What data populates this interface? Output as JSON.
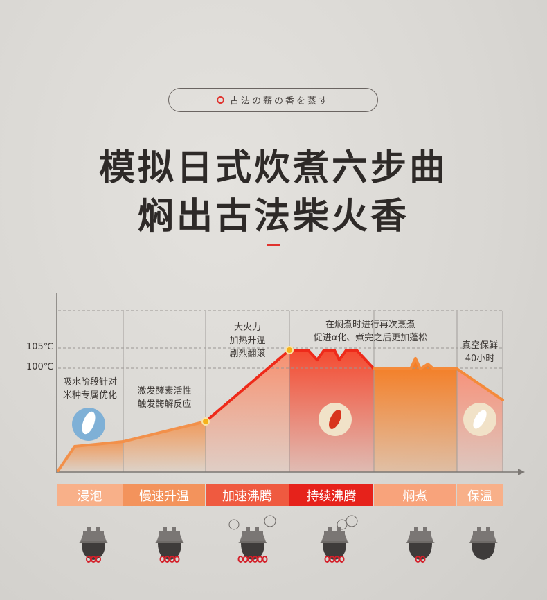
{
  "tagline": "古法の薪の香を蒸す",
  "title_line1": "模拟日式炊煮六步曲",
  "title_line2": "焖出古法柴火香",
  "chart_data": {
    "type": "line",
    "y_ticks": [
      "105℃",
      "100℃"
    ],
    "annotations": [
      {
        "lines": [
          "吸水阶段针对",
          "米种专属优化"
        ]
      },
      {
        "lines": [
          "激发酵素活性",
          "触发酶解反应"
        ]
      },
      {
        "lines": [
          "大火力",
          "加热升温",
          "剧烈翻滚"
        ]
      },
      {
        "lines": [
          "在焖煮时进行再次烹煮",
          "促进α化、煮完之后更加蓬松"
        ]
      },
      {
        "lines": [
          "真空保鲜",
          "40小时"
        ]
      }
    ],
    "categories": [
      "浸泡",
      "慢速升温",
      "加速沸腾",
      "持续沸腾",
      "焖煮",
      "保温"
    ],
    "grid": true
  },
  "stages": [
    {
      "label": "浸泡",
      "color": "#f8b089",
      "flames": 3
    },
    {
      "label": "慢速升温",
      "color": "#f3935c",
      "flames": 4
    },
    {
      "label": "加速沸腾",
      "color": "#ef5a40",
      "flames": 6
    },
    {
      "label": "持续沸腾",
      "color": "#e6221b",
      "flames": 4
    },
    {
      "label": "焖煮",
      "color": "#f8a37b",
      "flames": 2
    },
    {
      "label": "保温",
      "color": "#f8b089",
      "flames": 0
    }
  ]
}
